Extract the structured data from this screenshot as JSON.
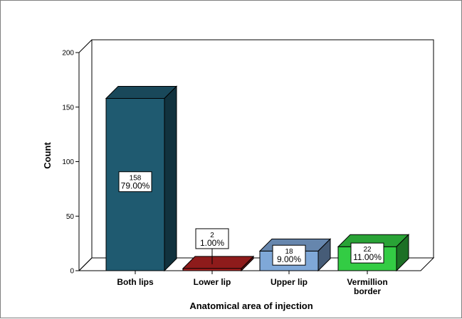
{
  "chart_data": {
    "type": "bar",
    "title": "",
    "xlabel": "Anatomical area of injection",
    "ylabel": "Count",
    "ylim": [
      0,
      200
    ],
    "yticks": [
      "0",
      "50",
      "100",
      "150",
      "200"
    ],
    "categories": [
      "Both lips",
      "Lower lip",
      "Upper lip",
      "Vermillion border"
    ],
    "values": [
      158,
      2,
      18,
      22
    ],
    "percent_labels": [
      "79.00%",
      "1.00%",
      "9.00%",
      "11.00%"
    ],
    "count_labels": [
      "158",
      "2",
      "18",
      "22"
    ],
    "colors": [
      "#1f5a70",
      "#b22222",
      "#7fa8d8",
      "#33cc44"
    ],
    "grid": false,
    "legend": "none"
  }
}
